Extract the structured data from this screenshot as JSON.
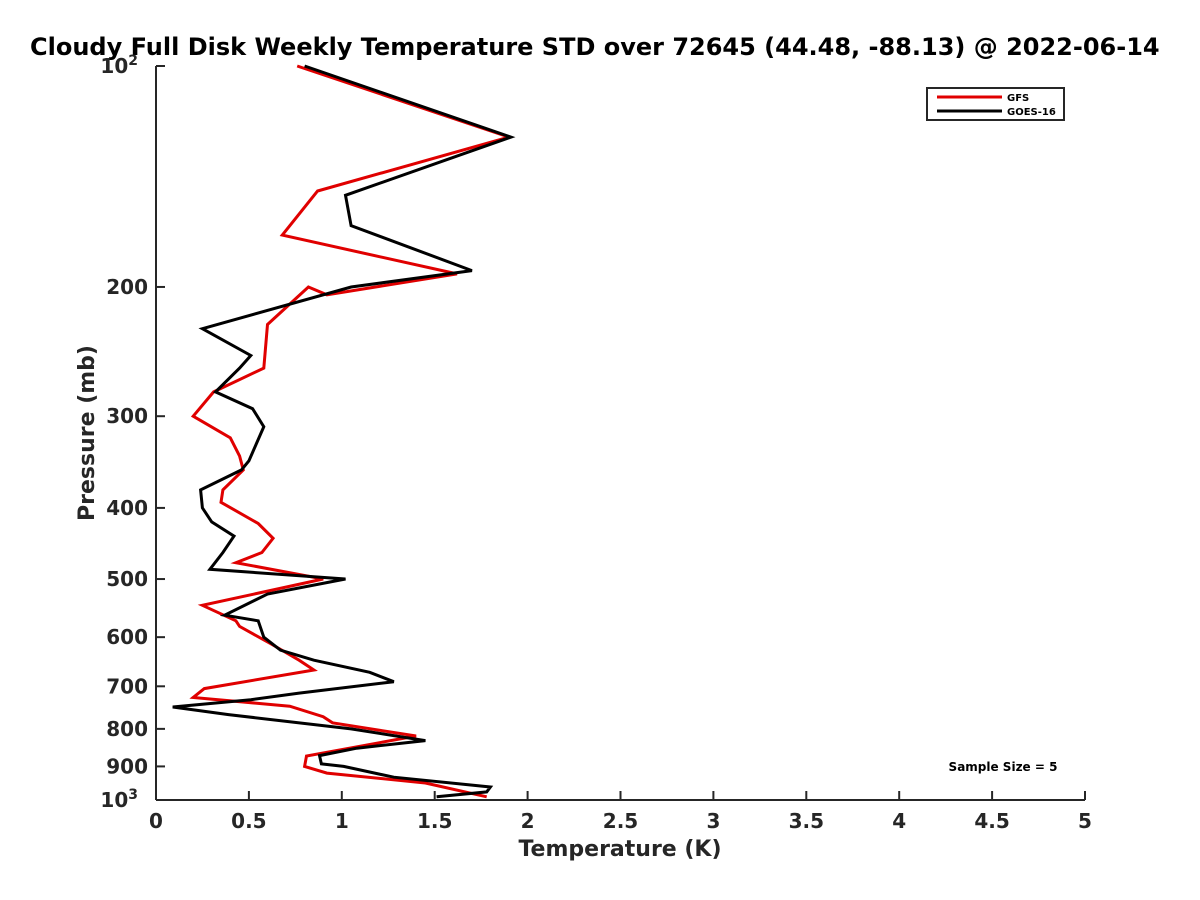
{
  "chart_data": {
    "type": "line",
    "title": "Cloudy Full Disk Weekly Temperature STD over 72645 (44.48, -88.13) @ 2022-06-14",
    "xlabel": "Temperature (K)",
    "ylabel": "Pressure (mb)",
    "xlim": [
      0,
      5
    ],
    "ylim": [
      100,
      1000
    ],
    "y_scale": "log",
    "y_reversed": true,
    "x_ticks": [
      "0",
      "0.5",
      "1",
      "1.5",
      "2",
      "2.5",
      "3",
      "3.5",
      "4",
      "4.5",
      "5"
    ],
    "x_tick_values": [
      0,
      0.5,
      1,
      1.5,
      2,
      2.5,
      3,
      3.5,
      4,
      4.5,
      5
    ],
    "y_ticks": [
      {
        "value": 100,
        "base": "10",
        "exp": "2"
      },
      {
        "value": 200,
        "label": "200"
      },
      {
        "value": 300,
        "label": "300"
      },
      {
        "value": 400,
        "label": "400"
      },
      {
        "value": 500,
        "label": "500"
      },
      {
        "value": 600,
        "label": "600"
      },
      {
        "value": 700,
        "label": "700"
      },
      {
        "value": 800,
        "label": "800"
      },
      {
        "value": 900,
        "label": "900"
      },
      {
        "value": 1000,
        "base": "10",
        "exp": "3"
      }
    ],
    "grid": false,
    "legend_position": "top-right",
    "annotation": "Sample Size = 5",
    "series": [
      {
        "name": "GFS",
        "color": "#e00000",
        "points": [
          [
            0.76,
            100
          ],
          [
            1.9,
            125
          ],
          [
            0.87,
            148
          ],
          [
            0.68,
            170
          ],
          [
            1.62,
            192
          ],
          [
            0.92,
            205
          ],
          [
            0.82,
            200
          ],
          [
            0.6,
            225
          ],
          [
            0.58,
            258
          ],
          [
            0.31,
            278
          ],
          [
            0.2,
            300
          ],
          [
            0.4,
            321
          ],
          [
            0.45,
            340
          ],
          [
            0.47,
            355
          ],
          [
            0.36,
            378
          ],
          [
            0.35,
            393
          ],
          [
            0.55,
            420
          ],
          [
            0.63,
            440
          ],
          [
            0.57,
            460
          ],
          [
            0.43,
            475
          ],
          [
            0.9,
            500
          ],
          [
            0.25,
            543
          ],
          [
            0.43,
            570
          ],
          [
            0.45,
            580
          ],
          [
            0.62,
            613
          ],
          [
            0.77,
            645
          ],
          [
            0.85,
            665
          ],
          [
            0.26,
            705
          ],
          [
            0.2,
            725
          ],
          [
            0.72,
            745
          ],
          [
            0.9,
            770
          ],
          [
            0.95,
            785
          ],
          [
            1.4,
            818
          ],
          [
            0.81,
            871
          ],
          [
            0.8,
            900
          ],
          [
            0.92,
            919
          ],
          [
            1.45,
            948
          ],
          [
            1.78,
            990
          ]
        ]
      },
      {
        "name": "GOES-16",
        "color": "#000000",
        "points": [
          [
            0.8,
            100
          ],
          [
            1.91,
            125
          ],
          [
            1.02,
            150
          ],
          [
            1.05,
            165
          ],
          [
            1.7,
            190
          ],
          [
            1.05,
            200
          ],
          [
            0.25,
            228
          ],
          [
            0.51,
            248
          ],
          [
            0.45,
            258
          ],
          [
            0.32,
            278
          ],
          [
            0.52,
            293
          ],
          [
            0.58,
            310
          ],
          [
            0.5,
            345
          ],
          [
            0.46,
            355
          ],
          [
            0.24,
            378
          ],
          [
            0.25,
            400
          ],
          [
            0.3,
            418
          ],
          [
            0.42,
            437
          ],
          [
            0.36,
            460
          ],
          [
            0.29,
            485
          ],
          [
            1.02,
            500
          ],
          [
            0.6,
            524
          ],
          [
            0.37,
            560
          ],
          [
            0.55,
            570
          ],
          [
            0.58,
            600
          ],
          [
            0.67,
            625
          ],
          [
            0.85,
            645
          ],
          [
            1.15,
            670
          ],
          [
            1.28,
            690
          ],
          [
            0.77,
            715
          ],
          [
            0.51,
            730
          ],
          [
            0.09,
            747
          ],
          [
            0.39,
            765
          ],
          [
            1.05,
            800
          ],
          [
            1.45,
            830
          ],
          [
            1.08,
            850
          ],
          [
            0.88,
            870
          ],
          [
            0.89,
            893
          ],
          [
            1.01,
            900
          ],
          [
            1.28,
            931
          ],
          [
            1.8,
            960
          ],
          [
            1.78,
            975
          ],
          [
            1.51,
            990
          ]
        ]
      }
    ]
  }
}
